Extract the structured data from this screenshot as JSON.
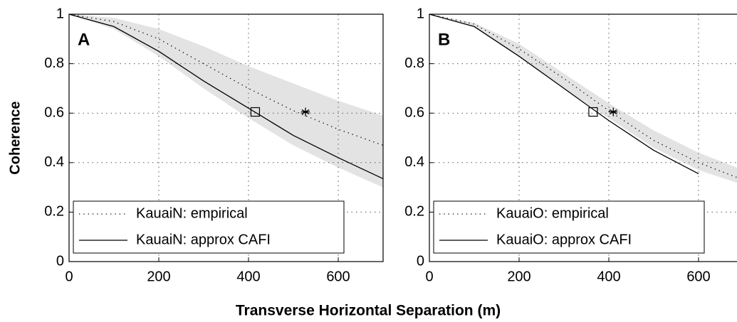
{
  "chart_data": [
    {
      "type": "line",
      "panel_label": "A",
      "ylabel": "Coherence",
      "xlabel": "Transverse Horizontal Separation (m)",
      "x": [
        0,
        100,
        200,
        300,
        400,
        500,
        600,
        700
      ],
      "series": [
        {
          "name": "KauaiN: empirical",
          "color": "#000000",
          "style": "dotted",
          "values": [
            1,
            0.97,
            0.9,
            0.8,
            0.7,
            0.61,
            0.535,
            0.47
          ]
        },
        {
          "name": "KauaiN: approx CAFI",
          "color": "#000000",
          "style": "solid",
          "values": [
            1,
            0.95,
            0.85,
            0.73,
            0.62,
            0.51,
            0.42,
            0.335
          ]
        }
      ],
      "band": {
        "color": "#e3e3e3",
        "upper": [
          1,
          0.985,
          0.94,
          0.87,
          0.79,
          0.72,
          0.65,
          0.59
        ],
        "lower": [
          1,
          0.94,
          0.83,
          0.7,
          0.58,
          0.47,
          0.38,
          0.3
        ]
      },
      "markers": [
        {
          "symbol": "square",
          "x": 415,
          "y": 0.605
        },
        {
          "symbol": "asterisk",
          "x": 527,
          "y": 0.605
        }
      ],
      "xlim": [
        0,
        700
      ],
      "ylim": [
        0,
        1
      ],
      "xticks": [
        0,
        200,
        400,
        600
      ],
      "yticks": [
        0,
        0.2,
        0.4,
        0.6,
        0.8,
        1
      ],
      "grid": true,
      "legend": "lower left"
    },
    {
      "type": "line",
      "panel_label": "B",
      "x": [
        0,
        100,
        200,
        300,
        400,
        500,
        600,
        700
      ],
      "series": [
        {
          "name": "KauaiO: empirical",
          "color": "#000000",
          "style": "dotted",
          "values": [
            1,
            0.96,
            0.86,
            0.74,
            0.61,
            0.49,
            0.4,
            0.33
          ]
        },
        {
          "name": "KauaiO: approx CAFI",
          "color": "#000000",
          "style": "solid",
          "values": [
            1,
            0.95,
            0.83,
            0.7,
            0.57,
            0.45,
            0.355,
            null
          ]
        }
      ],
      "band": {
        "color": "#e3e3e3",
        "upper": [
          1,
          0.965,
          0.88,
          0.76,
          0.64,
          0.53,
          0.44,
          0.37
        ],
        "lower": [
          1,
          0.95,
          0.83,
          0.7,
          0.58,
          0.46,
          0.37,
          0.31
        ]
      },
      "markers": [
        {
          "symbol": "square",
          "x": 365,
          "y": 0.605
        },
        {
          "symbol": "asterisk",
          "x": 410,
          "y": 0.605
        }
      ],
      "xlim": [
        0,
        700
      ],
      "ylim": [
        0,
        1
      ],
      "xticks": [
        0,
        200,
        400,
        600
      ],
      "yticks": [
        0,
        0.2,
        0.4,
        0.6,
        0.8,
        1
      ],
      "grid": true,
      "legend": "lower left"
    }
  ]
}
